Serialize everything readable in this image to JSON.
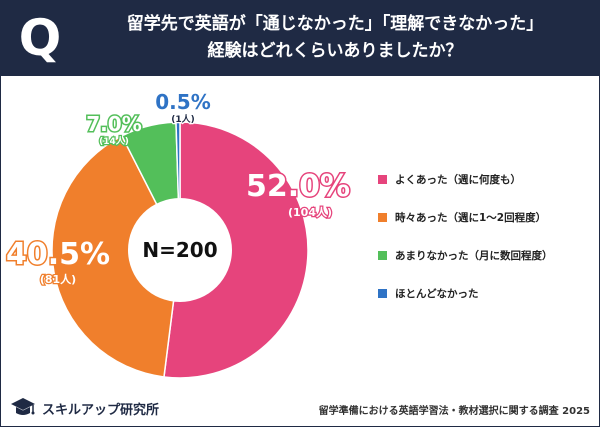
{
  "header": {
    "q_mark": "Q",
    "title_line1": "留学先で英語が「通じなかった」「理解できなかった」",
    "title_line2": "経験はどれくらいありましたか？"
  },
  "colors": {
    "header_bg": "#1f2a44",
    "often": "#e6447c",
    "sometimes": "#f07f2c",
    "rarely": "#53bf5a",
    "never": "#2f73c5"
  },
  "chart_data": {
    "type": "pie",
    "center_label": "N=200",
    "total": 200,
    "series": [
      {
        "name": "よくあった（週に何度も）",
        "percent": 52.0,
        "count": 104,
        "percent_label": "52.0%",
        "count_label": "(104人)",
        "color": "#e6447c"
      },
      {
        "name": "時々あった（週に1〜2回程度）",
        "percent": 40.5,
        "count": 81,
        "percent_label": "40.5%",
        "count_label": "(81人)",
        "color": "#f07f2c"
      },
      {
        "name": "あまりなかった（月に数回程度）",
        "percent": 7.0,
        "count": 14,
        "percent_label": "7.0%",
        "count_label": "(14人)",
        "color": "#53bf5a"
      },
      {
        "name": "ほとんどなかった",
        "percent": 0.5,
        "count": 1,
        "percent_label": "0.5%",
        "count_label": "(1人)",
        "color": "#2f73c5"
      }
    ],
    "legend_placement": "right"
  },
  "footer": {
    "brand": "スキルアップ研究所",
    "source": "留学準備における英語学習法・教材選択に関する調査 2025"
  }
}
